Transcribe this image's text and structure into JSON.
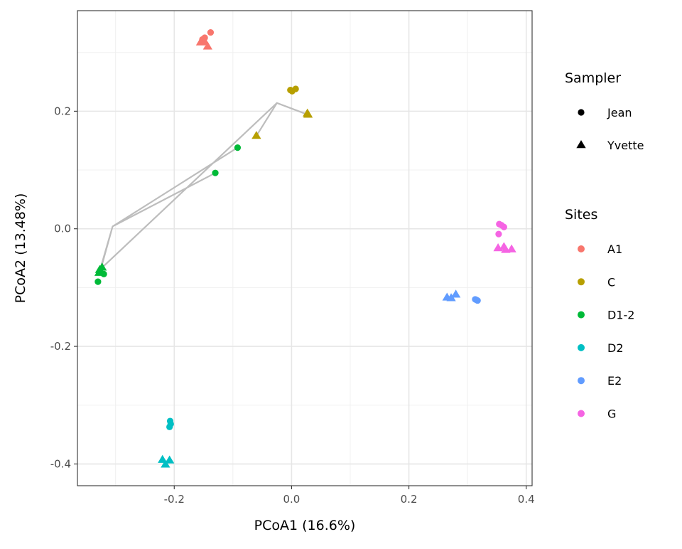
{
  "chart_data": {
    "type": "scatter",
    "xlabel": "PCoA1 (16.6%)",
    "ylabel": "PCoA2 (13.48%)",
    "xlim": [
      -0.365,
      0.41
    ],
    "ylim": [
      -0.437,
      0.371
    ],
    "x_ticks": [
      -0.2,
      0.0,
      0.2,
      0.4
    ],
    "x_tick_labels": [
      "-0.2",
      "0.0",
      "0.2",
      "0.4"
    ],
    "y_ticks": [
      -0.4,
      -0.2,
      0.0,
      0.2
    ],
    "y_tick_labels": [
      "-0.4",
      "-0.2",
      "0.0",
      "0.2"
    ],
    "grid": true,
    "legend_position": "right",
    "legends": {
      "shape": {
        "title": "Sampler",
        "entries": [
          {
            "label": "Jean",
            "shape": "circle"
          },
          {
            "label": "Yvette",
            "shape": "triangle"
          }
        ]
      },
      "color": {
        "title": "Sites",
        "entries": [
          {
            "label": "A1",
            "color": "#F8766D"
          },
          {
            "label": "C",
            "color": "#B79F00"
          },
          {
            "label": "D1-2",
            "color": "#00BA38"
          },
          {
            "label": "D2",
            "color": "#00BFC4"
          },
          {
            "label": "E2",
            "color": "#619CFF"
          },
          {
            "label": "G",
            "color": "#F564E3"
          }
        ]
      }
    },
    "trajectory": {
      "color": "#bdbdbd",
      "path": [
        [
          -0.13,
          0.095
        ],
        [
          -0.305,
          0.004
        ],
        [
          -0.092,
          0.138
        ],
        [
          -0.305,
          0.004
        ],
        [
          -0.328,
          -0.075
        ],
        [
          -0.305,
          0.004
        ],
        [
          -0.325,
          -0.068
        ],
        [
          -0.025,
          0.214
        ],
        [
          -0.06,
          0.158
        ],
        [
          -0.025,
          0.214
        ],
        [
          0.028,
          0.194
        ]
      ]
    },
    "series": [
      {
        "site": "A1",
        "sampler": "Jean",
        "points": [
          [
            -0.138,
            0.334
          ],
          [
            -0.152,
            0.322
          ],
          [
            -0.148,
            0.325
          ]
        ]
      },
      {
        "site": "A1",
        "sampler": "Yvette",
        "points": [
          [
            -0.155,
            0.317
          ],
          [
            -0.143,
            0.31
          ],
          [
            -0.148,
            0.318
          ]
        ]
      },
      {
        "site": "C",
        "sampler": "Jean",
        "points": [
          [
            -0.002,
            0.236
          ],
          [
            0.007,
            0.238
          ],
          [
            0.001,
            0.234
          ]
        ]
      },
      {
        "site": "C",
        "sampler": "Yvette",
        "points": [
          [
            -0.06,
            0.158
          ],
          [
            0.028,
            0.194
          ],
          [
            0.027,
            0.196
          ]
        ]
      },
      {
        "site": "D1-2",
        "sampler": "Jean",
        "points": [
          [
            -0.092,
            0.138
          ],
          [
            -0.13,
            0.095
          ],
          [
            -0.33,
            -0.09
          ],
          [
            -0.32,
            -0.077
          ]
        ]
      },
      {
        "site": "D1-2",
        "sampler": "Yvette",
        "points": [
          [
            -0.328,
            -0.075
          ],
          [
            -0.323,
            -0.066
          ],
          [
            -0.327,
            -0.07
          ]
        ]
      },
      {
        "site": "D2",
        "sampler": "Jean",
        "points": [
          [
            -0.207,
            -0.327
          ],
          [
            -0.208,
            -0.337
          ],
          [
            -0.206,
            -0.332
          ]
        ]
      },
      {
        "site": "D2",
        "sampler": "Yvette",
        "points": [
          [
            -0.22,
            -0.393
          ],
          [
            -0.208,
            -0.394
          ],
          [
            -0.215,
            -0.401
          ]
        ]
      },
      {
        "site": "E2",
        "sampler": "Jean",
        "points": [
          [
            0.315,
            -0.121
          ],
          [
            0.313,
            -0.12
          ],
          [
            0.317,
            -0.122
          ]
        ]
      },
      {
        "site": "E2",
        "sampler": "Yvette",
        "points": [
          [
            0.265,
            -0.117
          ],
          [
            0.28,
            -0.112
          ],
          [
            0.272,
            -0.118
          ]
        ]
      },
      {
        "site": "G",
        "sampler": "Jean",
        "points": [
          [
            0.354,
            0.008
          ],
          [
            0.362,
            0.003
          ],
          [
            0.353,
            -0.009
          ],
          [
            0.358,
            0.006
          ]
        ]
      },
      {
        "site": "G",
        "sampler": "Yvette",
        "points": [
          [
            0.352,
            -0.033
          ],
          [
            0.362,
            -0.031
          ],
          [
            0.375,
            -0.035
          ],
          [
            0.365,
            -0.036
          ]
        ]
      }
    ]
  }
}
